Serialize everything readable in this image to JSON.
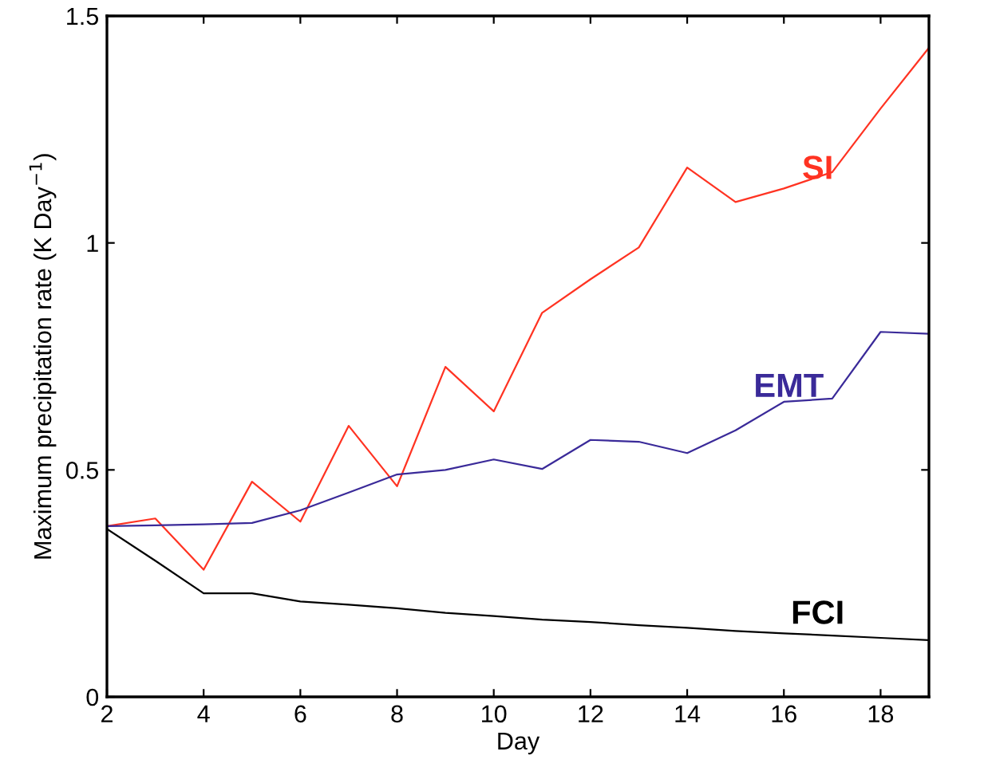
{
  "chart_data": {
    "type": "line",
    "xlabel": "Day",
    "ylabel": "Maximum precipitation rate (K Day$^{−1}$)",
    "x": [
      2,
      3,
      4,
      5,
      6,
      7,
      8,
      9,
      10,
      11,
      12,
      13,
      14,
      15,
      16,
      17,
      18,
      19
    ],
    "xlim": [
      2,
      19
    ],
    "xticks": [
      2,
      4,
      6,
      8,
      10,
      12,
      14,
      16,
      18
    ],
    "ylim": [
      0,
      1.5
    ],
    "yticks": [
      0,
      {
        "value": 0.5,
        "label": "0.5"
      },
      1,
      {
        "value": 1.5,
        "label": "1.5"
      }
    ],
    "grid": false,
    "legend": false,
    "line_style": "solid",
    "series": [
      {
        "name": "SI",
        "color": "#ff3322",
        "values": [
          0.376,
          0.393,
          0.28,
          0.474,
          0.386,
          0.597,
          0.464,
          0.727,
          0.629,
          0.846,
          0.92,
          0.99,
          1.166,
          1.09,
          1.12,
          1.156,
          1.296,
          1.43
        ]
      },
      {
        "name": "EMT",
        "color": "#3a2a99",
        "values": [
          0.376,
          0.378,
          0.38,
          0.383,
          0.411,
          0.45,
          0.49,
          0.5,
          0.523,
          0.502,
          0.566,
          0.562,
          0.537,
          0.587,
          0.65,
          0.657,
          0.804,
          0.8
        ]
      },
      {
        "name": "FCI",
        "color": "#000000",
        "values": [
          0.37,
          0.3,
          0.228,
          0.228,
          0.21,
          0.203,
          0.195,
          0.185,
          0.178,
          0.17,
          0.165,
          0.158,
          0.152,
          0.145,
          0.14,
          0.135,
          0.13,
          0.125
        ]
      }
    ]
  }
}
